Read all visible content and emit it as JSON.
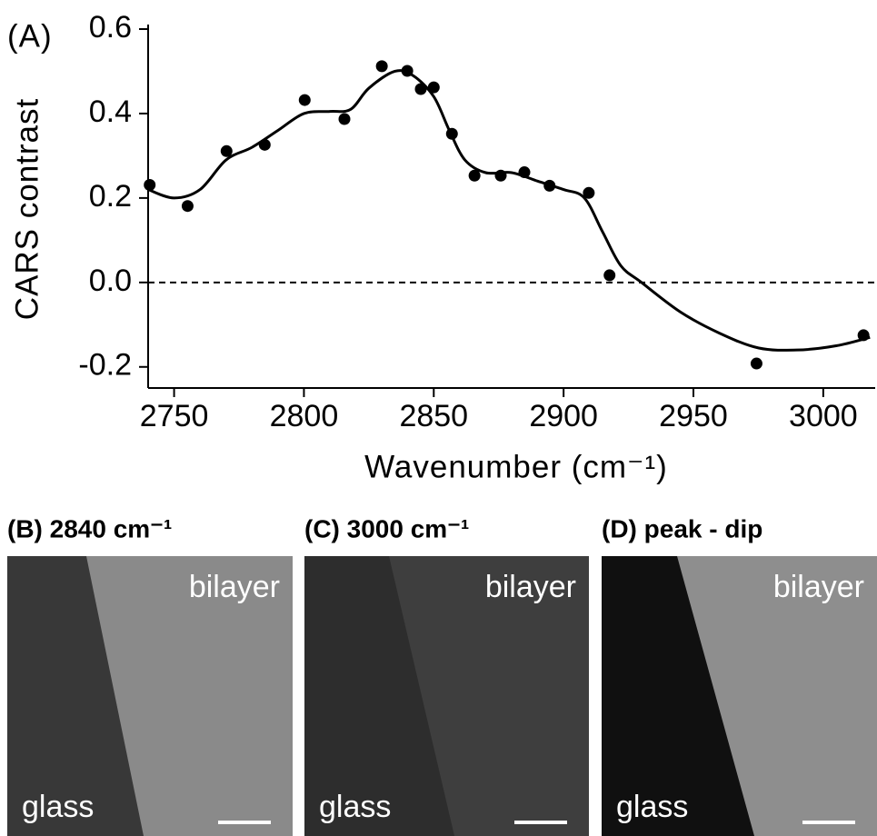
{
  "chart_data": {
    "type": "scatter",
    "panel_label": "(A)",
    "x_label": "Wavenumber (cm⁻¹)",
    "y_label": "CARS contrast",
    "xlim": [
      2740,
      3020
    ],
    "xticks": [
      2750,
      2800,
      2850,
      2900,
      2950,
      3000
    ],
    "ylim": [
      -0.25,
      0.6
    ],
    "yticks": [
      -0.2,
      {
        "value": 0,
        "label": "0.0"
      },
      0.2,
      0.4,
      0.6
    ],
    "hline": 0,
    "series": [
      {
        "mode": "markers",
        "color": "#000000",
        "x": [
          2740.6,
          2755.2,
          2770.2,
          2784.9,
          2800.3,
          2815.6,
          2830,
          2839.8,
          2845,
          2850,
          2857,
          2865.7,
          2875.8,
          2884.9,
          2894.6,
          2909.7,
          2917.7,
          2974.3,
          3015.5
        ],
        "values": [
          0.231,
          0.181,
          0.311,
          0.326,
          0.432,
          0.387,
          0.512,
          0.501,
          0.458,
          0.462,
          0.352,
          0.253,
          0.253,
          0.261,
          0.229,
          0.212,
          0.017,
          -0.192,
          -0.125
        ]
      },
      {
        "mode": "line",
        "color": "#000000",
        "x": [
          2740,
          2750,
          2760,
          2770,
          2780,
          2790,
          2800,
          2810,
          2818,
          2825,
          2835,
          2842,
          2850,
          2856,
          2862,
          2870,
          2880,
          2890,
          2900,
          2908,
          2915,
          2922,
          2930,
          2945,
          2960,
          2975,
          2990,
          3005,
          3018
        ],
        "values": [
          0.22,
          0.2,
          0.22,
          0.29,
          0.32,
          0.36,
          0.4,
          0.405,
          0.41,
          0.46,
          0.5,
          0.49,
          0.44,
          0.36,
          0.29,
          0.26,
          0.26,
          0.24,
          0.22,
          0.2,
          0.12,
          0.04,
          0.0,
          -0.07,
          -0.12,
          -0.155,
          -0.16,
          -0.15,
          -0.13
        ]
      }
    ]
  },
  "panels": [
    {
      "title": "(B) 2840 cm⁻¹",
      "labels": [
        "bilayer",
        "glass"
      ]
    },
    {
      "title": "(C) 3000 cm⁻¹",
      "labels": [
        "bilayer",
        "glass"
      ]
    },
    {
      "title": "(D) peak - dip",
      "labels": [
        "bilayer",
        "glass"
      ]
    }
  ]
}
